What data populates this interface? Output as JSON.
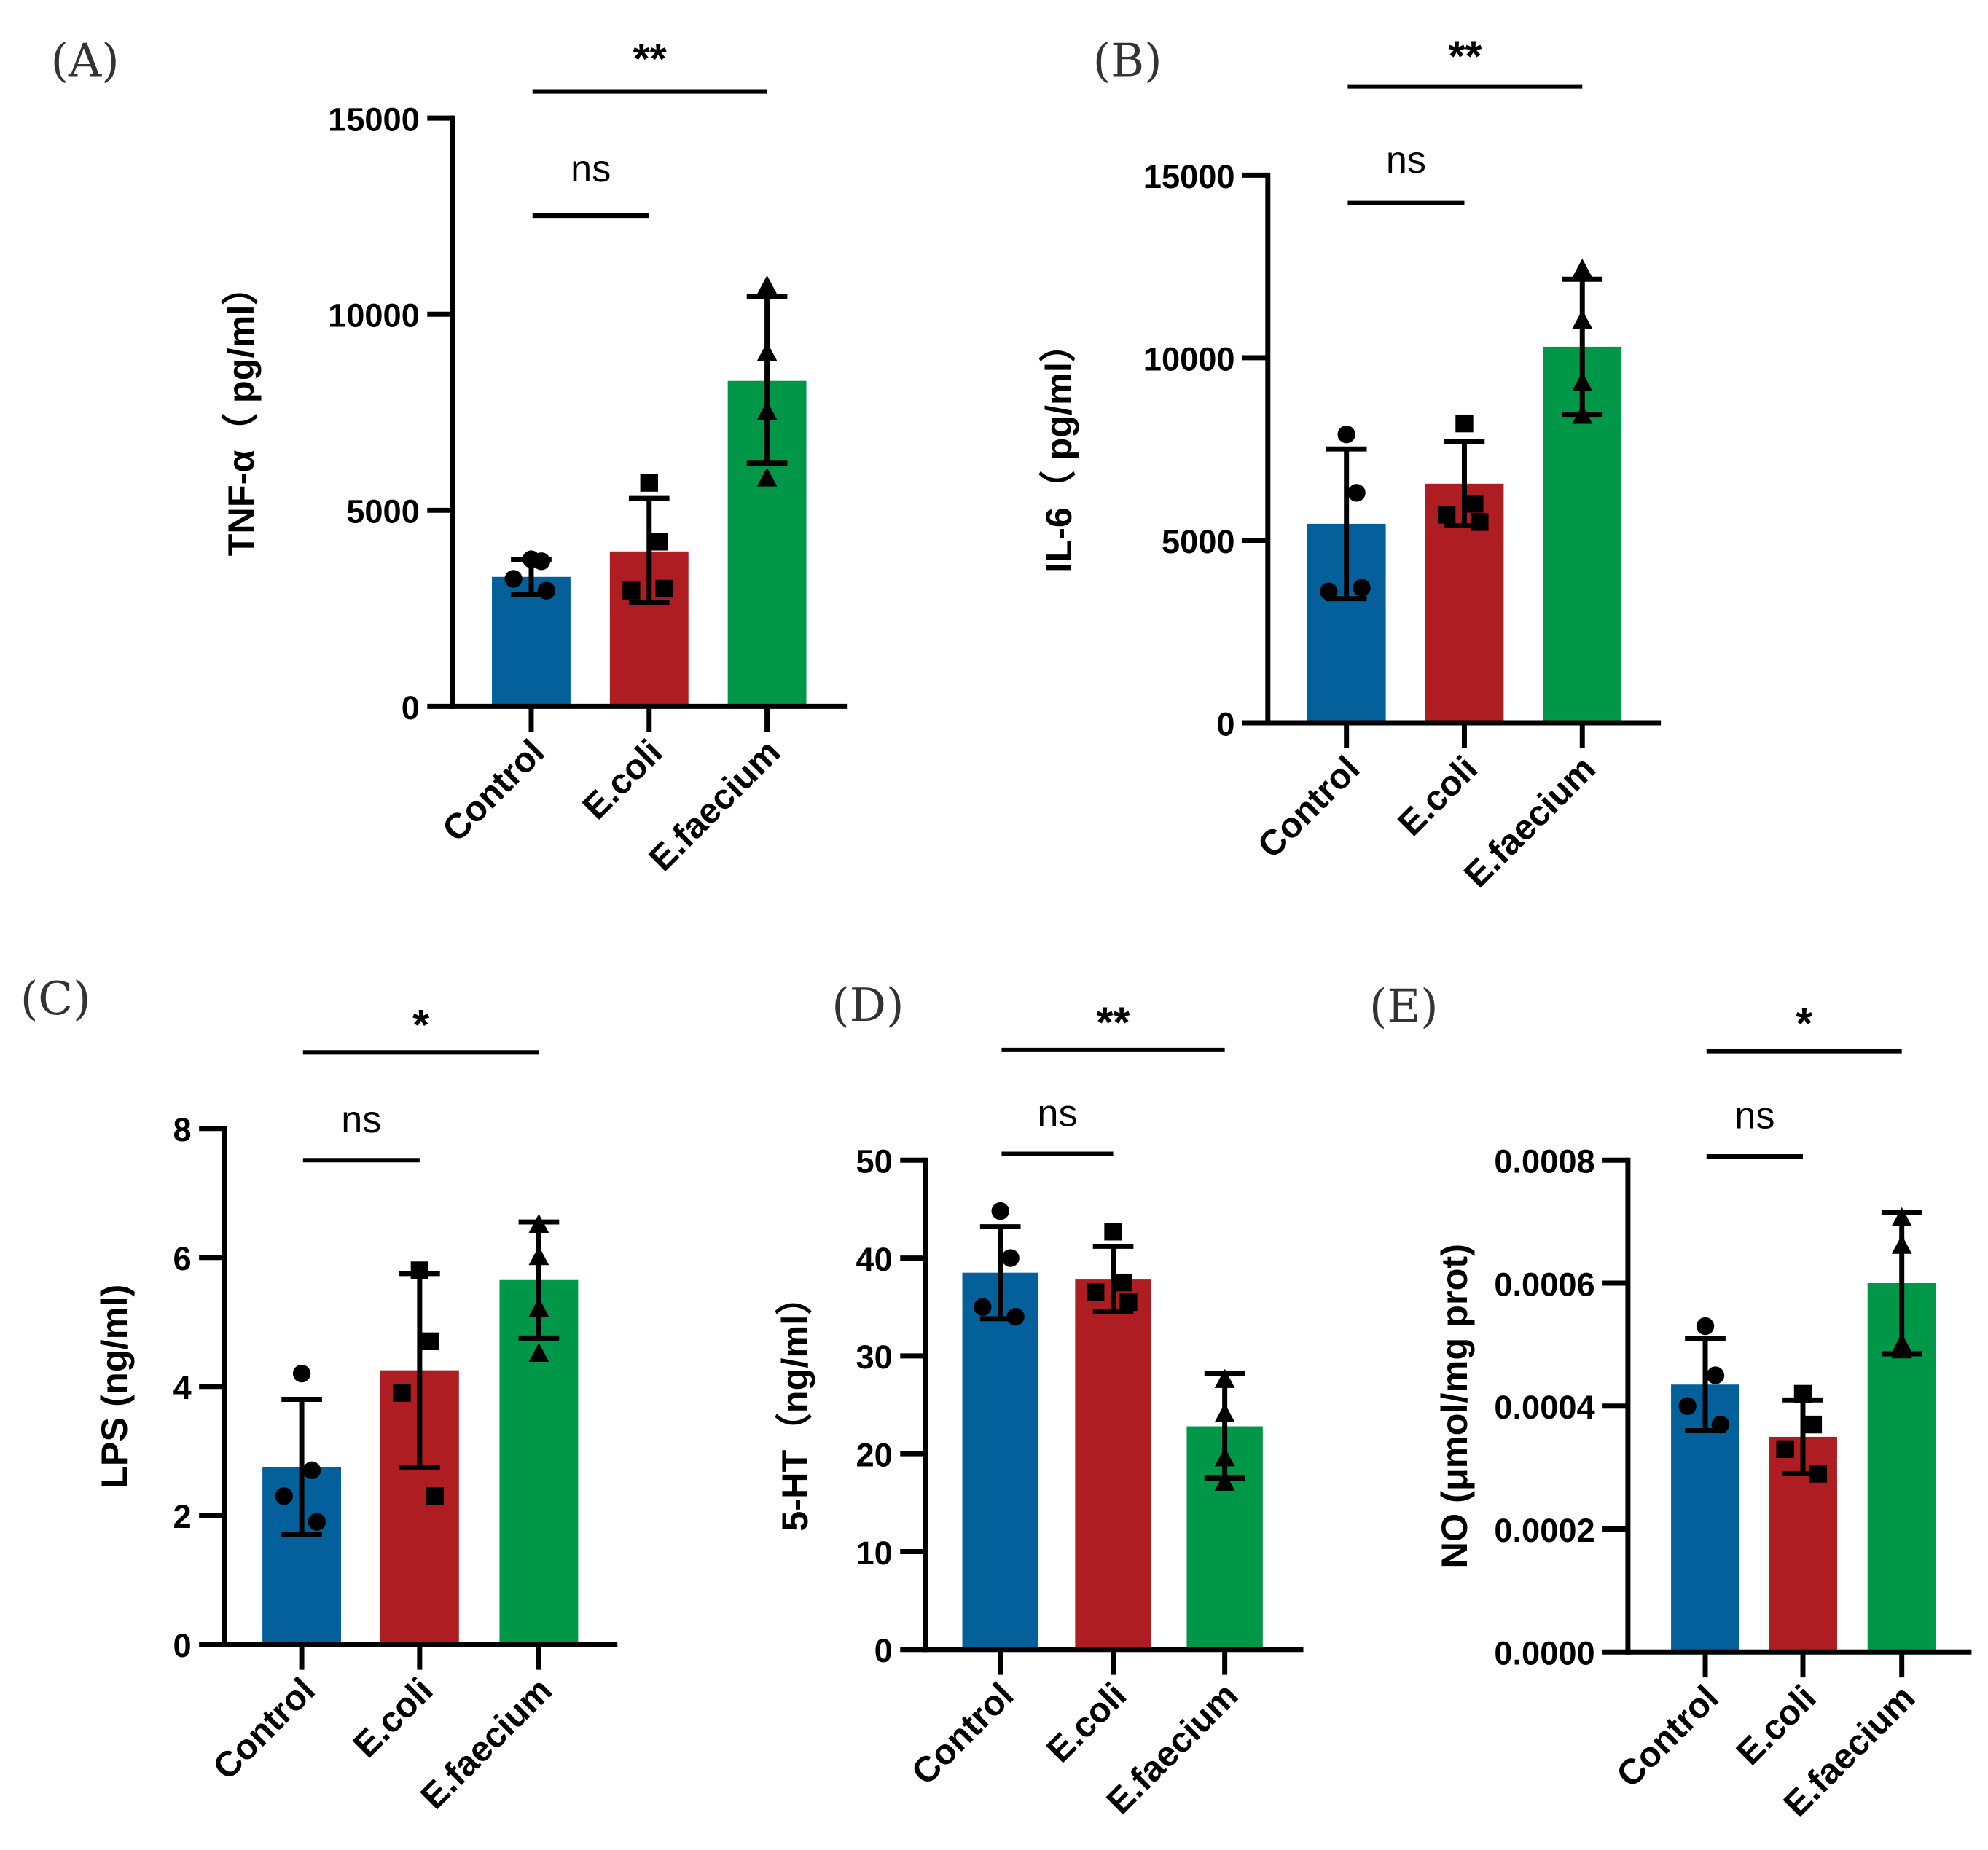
{
  "colors": {
    "Control": "#03609a",
    "E.coli": "#ad1d22",
    "E.faecium": "#019748",
    "ink": "#000000"
  },
  "chart_data": [
    {
      "panel": "(A)",
      "type": "bar",
      "ylabel": "TNF-α（ pg/ml）",
      "categories": [
        "Control",
        "E.coli",
        "E.faecium"
      ],
      "ylim": [
        0,
        15000
      ],
      "yticks": [
        0,
        5000,
        10000,
        15000
      ],
      "tick_labels": [
        "0",
        "5000",
        "10000",
        "15000"
      ],
      "markers": [
        "circle",
        "square",
        "triangle"
      ],
      "means": [
        3300,
        3950,
        8300
      ],
      "err_hi": [
        3750,
        5300,
        10450
      ],
      "err_lo": [
        2850,
        2650,
        6200
      ],
      "points": [
        [
          3750,
          3700,
          3250,
          2950
        ],
        [
          5700,
          4200,
          2950,
          3000
        ],
        [
          10700,
          9000,
          7500,
          5800
        ]
      ],
      "significance": [
        {
          "from": 0,
          "to": 1,
          "label": "ns"
        },
        {
          "from": 0,
          "to": 2,
          "label": "**"
        }
      ]
    },
    {
      "panel": "(B)",
      "type": "bar",
      "ylabel": "IL-6（ pg/ml）",
      "categories": [
        "Control",
        "E.coli",
        "E.faecium"
      ],
      "ylim": [
        0,
        15000
      ],
      "yticks": [
        0,
        5000,
        10000,
        15000
      ],
      "tick_labels": [
        "0",
        "5000",
        "10000",
        "15000"
      ],
      "markers": [
        "circle",
        "square",
        "triangle"
      ],
      "means": [
        5450,
        6550,
        10300
      ],
      "err_hi": [
        7500,
        7700,
        12150
      ],
      "err_lo": [
        3400,
        5400,
        8450
      ],
      "points": [
        [
          7900,
          6300,
          3600,
          3700
        ],
        [
          8200,
          6000,
          5700,
          5500
        ],
        [
          12400,
          11000,
          9300,
          8400
        ]
      ],
      "significance": [
        {
          "from": 0,
          "to": 1,
          "label": "ns"
        },
        {
          "from": 0,
          "to": 2,
          "label": "**"
        }
      ]
    },
    {
      "panel": "(C)",
      "type": "bar",
      "ylabel": "LPS (ng/ml)",
      "categories": [
        "Control",
        "E.coli",
        "E.faecium"
      ],
      "ylim": [
        0,
        8
      ],
      "yticks": [
        0,
        2,
        4,
        6,
        8
      ],
      "tick_labels": [
        "0",
        "2",
        "4",
        "6",
        "8"
      ],
      "markers": [
        "circle",
        "square",
        "triangle"
      ],
      "means": [
        2.75,
        4.25,
        5.65
      ],
      "err_hi": [
        3.8,
        5.75,
        6.55
      ],
      "err_lo": [
        1.7,
        2.75,
        4.75
      ],
      "points": [
        [
          4.2,
          2.7,
          2.3,
          1.9
        ],
        [
          5.8,
          4.7,
          3.9,
          2.3
        ],
        [
          6.5,
          6.0,
          5.2,
          4.5
        ]
      ],
      "significance": [
        {
          "from": 0,
          "to": 1,
          "label": "ns"
        },
        {
          "from": 0,
          "to": 2,
          "label": "*"
        }
      ]
    },
    {
      "panel": "(D)",
      "type": "bar",
      "ylabel": "5-HT（ng/ml）",
      "categories": [
        "Control",
        "E.coli",
        "E.faecium"
      ],
      "ylim": [
        0,
        50
      ],
      "yticks": [
        0,
        10,
        20,
        30,
        40,
        50
      ],
      "tick_labels": [
        "0",
        "10",
        "20",
        "30",
        "40",
        "50"
      ],
      "markers": [
        "circle",
        "square",
        "triangle"
      ],
      "means": [
        38.5,
        37.8,
        22.8
      ],
      "err_hi": [
        43.2,
        41.2,
        28.2
      ],
      "err_lo": [
        33.8,
        34.5,
        17.5
      ],
      "points": [
        [
          44.8,
          40,
          35,
          34
        ],
        [
          42.7,
          37.5,
          36.5,
          35.5
        ],
        [
          27.5,
          24,
          19.5,
          17
        ]
      ],
      "significance": [
        {
          "from": 0,
          "to": 1,
          "label": "ns"
        },
        {
          "from": 0,
          "to": 2,
          "label": "**"
        }
      ]
    },
    {
      "panel": "(E)",
      "type": "bar",
      "ylabel": "NO (μmol/mg prot)",
      "categories": [
        "Control",
        "E.coli",
        "E.faecium"
      ],
      "ylim": [
        0,
        0.0008
      ],
      "yticks": [
        0,
        0.0002,
        0.0004,
        0.0006,
        0.0008
      ],
      "tick_labels": [
        "0.0000",
        "0.0002",
        "0.0004",
        "0.0006",
        "0.0008"
      ],
      "markers": [
        "circle",
        "square",
        "triangle"
      ],
      "means": [
        0.000435,
        0.00035,
        0.0006
      ],
      "err_hi": [
        0.00051,
        0.00041,
        0.000715
      ],
      "err_lo": [
        0.00036,
        0.00029,
        0.000485
      ],
      "points": [
        [
          0.00053,
          0.00045,
          0.0004,
          0.00037
        ],
        [
          0.00042,
          0.00037,
          0.00033,
          0.00029
        ],
        [
          0.000705,
          0.00066,
          0.0005,
          0.00049
        ]
      ],
      "significance": [
        {
          "from": 0,
          "to": 1,
          "label": "ns"
        },
        {
          "from": 0,
          "to": 2,
          "label": "*"
        }
      ]
    }
  ]
}
